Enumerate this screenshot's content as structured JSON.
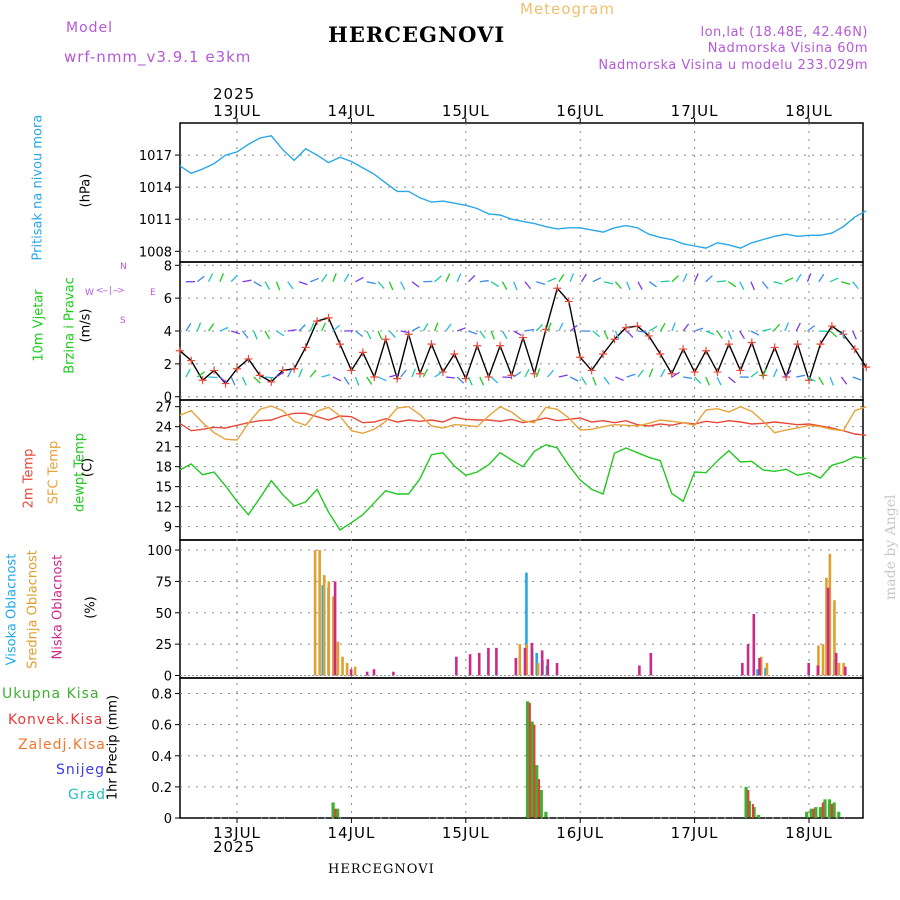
{
  "header": {
    "model_label": "Model",
    "model_name": "wrf-nmm_v3.9.1  e3km",
    "station": "HERCEGNOVI",
    "meteogram": "Meteogram",
    "lonlat": "lon,lat (18.48E, 42.46N)",
    "altitude": "Nadmorska Visina 60m",
    "model_altitude": "Nadmorska Visina u modelu 233.029m"
  },
  "footer": {
    "station": "HERCEGNOVI"
  },
  "watermark": "made by Angel",
  "colors": {
    "pressure": "#2aa7e6",
    "wind_obs": "#1ccc1c",
    "temp2m": "#e84a3a",
    "sfc_temp": "#e8a23a",
    "dewpt": "#22c822",
    "high_cloud": "#22a8e8",
    "mid_cloud": "#e0a030",
    "low_cloud": "#cc2a8a",
    "precip_total": "#40b030",
    "precip_conv": "#e83a3a",
    "precip_frz": "#f07830",
    "precip_snow": "#3a3ae8",
    "precip_grad": "#20c0c0",
    "grid": "#888888"
  },
  "axis_x": {
    "year": "2025",
    "days": [
      "13JUL",
      "14JUL",
      "15JUL",
      "16JUL",
      "17JUL",
      "18JUL"
    ]
  },
  "panels": {
    "pressure": {
      "label": "Pritisak na nivou mora",
      "unit": "(hPa)",
      "ticks": [
        "1017",
        "1014",
        "1011",
        "1008"
      ]
    },
    "wind": {
      "label1": "10m Vjetar",
      "label2": "Brzina i Pravac",
      "unit": "(m/s)",
      "ticks": [
        "8",
        "6",
        "4",
        "2",
        "0"
      ],
      "compass": {
        "n": "N",
        "s": "S",
        "e": "E",
        "w": "W"
      }
    },
    "temp": {
      "label1": "2m Temp",
      "label2": "SFC Temp",
      "label3": "dewpt Temp",
      "unit": "(C)",
      "ticks": [
        "27",
        "24",
        "21",
        "18",
        "15",
        "12",
        "9"
      ]
    },
    "cloud": {
      "label1": "Visoka Oblacnost",
      "label2": "Srednja Oblacnost",
      "label3": "Niska Oblacnost",
      "unit": "(%)",
      "ticks": [
        "100",
        "75",
        "50",
        "25",
        "0"
      ]
    },
    "precip": {
      "legend": [
        "Ukupna Kisa",
        "Konvek.Kisa",
        "Zaledj.Kisa",
        "Snijeg",
        "Grad"
      ],
      "unit": "1hr Precip (mm)",
      "ticks": [
        "0.8",
        "0.6",
        "0.4",
        "0.2",
        "0"
      ]
    }
  },
  "chart_data": [
    {
      "type": "line",
      "title": "Pritisak na nivou mora",
      "ylabel": "(hPa)",
      "ylim": [
        1007,
        1020
      ],
      "x_unit": "days since 13JUL 00Z",
      "series": [
        {
          "name": "Pritisak na nivou mora",
          "x": [
            -0.5,
            -0.4,
            -0.3,
            -0.2,
            -0.1,
            0,
            0.1,
            0.2,
            0.3,
            0.4,
            0.5,
            0.6,
            0.7,
            0.8,
            0.9,
            1,
            1.1,
            1.2,
            1.3,
            1.4,
            1.5,
            1.6,
            1.7,
            1.8,
            1.9,
            2,
            2.1,
            2.2,
            2.3,
            2.4,
            2.5,
            2.6,
            2.7,
            2.8,
            2.9,
            3,
            3.1,
            3.2,
            3.3,
            3.4,
            3.5,
            3.6,
            3.7,
            3.8,
            3.9,
            4,
            4.1,
            4.2,
            4.3,
            4.4,
            4.5,
            4.6,
            4.7,
            4.8,
            4.9,
            5,
            5.1,
            5.2,
            5.3,
            5.4,
            5.5
          ],
          "y": [
            1016.0,
            1015.3,
            1015.7,
            1016.2,
            1017.0,
            1017.3,
            1018.0,
            1018.6,
            1018.8,
            1017.5,
            1016.5,
            1017.6,
            1017.0,
            1016.3,
            1016.8,
            1016.4,
            1015.8,
            1015.2,
            1014.4,
            1013.6,
            1013.6,
            1013.0,
            1012.6,
            1012.7,
            1012.5,
            1012.3,
            1012.0,
            1011.5,
            1011.4,
            1011.0,
            1010.8,
            1010.6,
            1010.3,
            1010.1,
            1010.2,
            1010.2,
            1010.0,
            1009.8,
            1010.2,
            1010.4,
            1010.2,
            1009.6,
            1009.3,
            1009.1,
            1008.7,
            1008.5,
            1008.3,
            1008.8,
            1008.6,
            1008.3,
            1008.8,
            1009.1,
            1009.4,
            1009.6,
            1009.4,
            1009.5,
            1009.5,
            1009.7,
            1010.3,
            1011.2,
            1011.8
          ]
        }
      ]
    },
    {
      "type": "line",
      "title": "10m Vjetar Brzina i Pravac",
      "ylabel": "(m/s)",
      "ylim": [
        0,
        8
      ],
      "x_unit": "days since 13JUL 00Z",
      "series": [
        {
          "name": "10m Vjetar",
          "x": [
            -0.5,
            -0.4,
            -0.3,
            -0.2,
            -0.1,
            0,
            0.1,
            0.2,
            0.3,
            0.4,
            0.5,
            0.6,
            0.7,
            0.8,
            0.9,
            1,
            1.1,
            1.2,
            1.3,
            1.4,
            1.5,
            1.6,
            1.7,
            1.8,
            1.9,
            2,
            2.1,
            2.2,
            2.3,
            2.4,
            2.5,
            2.6,
            2.7,
            2.8,
            2.9,
            3,
            3.1,
            3.2,
            3.3,
            3.4,
            3.5,
            3.6,
            3.7,
            3.8,
            3.9,
            4,
            4.1,
            4.2,
            4.3,
            4.4,
            4.5,
            4.6,
            4.7,
            4.8,
            4.9,
            5,
            5.1,
            5.2,
            5.3,
            5.4,
            5.5
          ],
          "y": [
            2.8,
            2.2,
            1.0,
            1.6,
            0.8,
            1.7,
            2.3,
            1.3,
            0.9,
            1.6,
            1.7,
            3.0,
            4.6,
            4.8,
            3.2,
            1.6,
            2.7,
            1.2,
            3.5,
            1.1,
            3.8,
            1.4,
            3.2,
            1.5,
            2.6,
            1.1,
            3.1,
            1.2,
            3.1,
            1.3,
            3.6,
            1.4,
            4.1,
            6.6,
            5.8,
            2.4,
            1.6,
            2.6,
            3.5,
            4.2,
            4.3,
            3.7,
            2.6,
            1.4,
            2.9,
            1.5,
            2.8,
            1.5,
            3.2,
            1.6,
            3.3,
            1.3,
            3.0,
            1.2,
            3.2,
            1.0,
            3.2,
            4.3,
            3.8,
            2.9,
            1.8
          ]
        }
      ]
    },
    {
      "type": "line",
      "title": "Temperatura",
      "ylabel": "(C)",
      "ylim": [
        7,
        28
      ],
      "x_unit": "days since 13JUL 00Z",
      "series": [
        {
          "name": "2m Temp",
          "x": [
            -0.5,
            -0.4,
            -0.3,
            -0.2,
            -0.1,
            0,
            0.1,
            0.2,
            0.3,
            0.4,
            0.5,
            0.6,
            0.7,
            0.8,
            0.9,
            1,
            1.1,
            1.2,
            1.3,
            1.4,
            1.5,
            1.6,
            1.7,
            1.8,
            1.9,
            2,
            2.1,
            2.2,
            2.3,
            2.4,
            2.5,
            2.6,
            2.7,
            2.8,
            2.9,
            3,
            3.1,
            3.2,
            3.3,
            3.4,
            3.5,
            3.6,
            3.7,
            3.8,
            3.9,
            4,
            4.1,
            4.2,
            4.3,
            4.4,
            4.5,
            4.6,
            4.7,
            4.8,
            4.9,
            5,
            5.1,
            5.2,
            5.3,
            5.4,
            5.5
          ],
          "y": [
            24.5,
            23.4,
            23.6,
            23.9,
            23.8,
            24.2,
            24.6,
            24.9,
            25.0,
            25.6,
            26.0,
            26.0,
            25.5,
            25.0,
            25.6,
            25.5,
            24.6,
            24.7,
            25.2,
            24.7,
            25.0,
            24.8,
            25.0,
            24.7,
            25.4,
            25.1,
            25.0,
            25.0,
            24.8,
            25.1,
            24.6,
            24.9,
            25.3,
            24.9,
            25.1,
            25.3,
            24.7,
            24.9,
            24.6,
            24.9,
            24.3,
            24.1,
            24.4,
            24.2,
            24.6,
            24.4,
            24.8,
            24.6,
            24.9,
            24.7,
            24.4,
            24.5,
            24.7,
            24.5,
            24.3,
            24.4,
            24.1,
            23.8,
            23.4,
            22.9,
            22.7
          ]
        },
        {
          "name": "SFC Temp",
          "x": [
            -0.5,
            -0.4,
            -0.3,
            -0.2,
            -0.1,
            0,
            0.1,
            0.2,
            0.3,
            0.4,
            0.5,
            0.6,
            0.7,
            0.8,
            0.9,
            1,
            1.1,
            1.2,
            1.3,
            1.4,
            1.5,
            1.6,
            1.7,
            1.8,
            1.9,
            2,
            2.1,
            2.2,
            2.3,
            2.4,
            2.5,
            2.6,
            2.7,
            2.8,
            2.9,
            3,
            3.1,
            3.2,
            3.3,
            3.4,
            3.5,
            3.6,
            3.7,
            3.8,
            3.9,
            4,
            4.1,
            4.2,
            4.3,
            4.4,
            4.5,
            4.6,
            4.7,
            4.8,
            4.9,
            5,
            5.1,
            5.2,
            5.3,
            5.4,
            5.5
          ],
          "y": [
            25.7,
            26.4,
            24.6,
            23.1,
            22.1,
            22.0,
            24.5,
            26.6,
            27.1,
            26.4,
            24.8,
            24.2,
            26.3,
            26.9,
            25.6,
            23.4,
            23.0,
            23.6,
            24.8,
            26.8,
            27.0,
            25.8,
            24.1,
            23.8,
            24.3,
            24.2,
            24.0,
            25.6,
            27.0,
            26.2,
            24.9,
            24.6,
            26.9,
            26.6,
            25.3,
            23.5,
            23.6,
            24.0,
            24.3,
            24.2,
            24.1,
            24.5,
            25.0,
            24.8,
            24.6,
            24.2,
            26.5,
            26.7,
            26.2,
            27.0,
            26.3,
            24.8,
            23.1,
            23.5,
            23.8,
            24.2,
            24.0,
            23.6,
            23.4,
            26.4,
            27.0
          ]
        },
        {
          "name": "dewpt Temp",
          "x": [
            -0.5,
            -0.4,
            -0.3,
            -0.2,
            -0.1,
            0,
            0.1,
            0.2,
            0.3,
            0.4,
            0.5,
            0.6,
            0.7,
            0.8,
            0.9,
            1,
            1.1,
            1.2,
            1.3,
            1.4,
            1.5,
            1.6,
            1.7,
            1.8,
            1.9,
            2,
            2.1,
            2.2,
            2.3,
            2.4,
            2.5,
            2.6,
            2.7,
            2.8,
            2.9,
            3,
            3.1,
            3.2,
            3.3,
            3.4,
            3.5,
            3.6,
            3.7,
            3.8,
            3.9,
            4,
            4.1,
            4.2,
            4.3,
            4.4,
            4.5,
            4.6,
            4.7,
            4.8,
            4.9,
            5,
            5.1,
            5.2,
            5.3,
            5.4,
            5.5
          ],
          "y": [
            17.5,
            18.4,
            16.8,
            17.2,
            15.1,
            12.8,
            10.8,
            13.3,
            15.9,
            13.8,
            12.1,
            12.7,
            14.6,
            11.2,
            8.5,
            9.6,
            10.8,
            12.6,
            14.4,
            13.9,
            13.9,
            16.2,
            19.8,
            20.1,
            18.1,
            16.7,
            17.2,
            18.3,
            20.1,
            19.0,
            18.0,
            20.3,
            21.3,
            20.8,
            18.2,
            16.0,
            14.6,
            13.9,
            20.0,
            20.8,
            20.1,
            19.4,
            18.9,
            14.0,
            12.8,
            17.2,
            17.1,
            18.9,
            20.4,
            18.7,
            18.8,
            17.5,
            17.3,
            17.6,
            16.7,
            17.1,
            16.3,
            18.2,
            18.7,
            19.5,
            19.2
          ]
        }
      ]
    },
    {
      "type": "bar",
      "title": "Oblacnost",
      "ylabel": "(%)",
      "ylim": [
        0,
        100
      ],
      "x_unit": "days since 13JUL 00Z",
      "series": [
        {
          "name": "Visoka Oblacnost",
          "x": [
            0.75,
            0.8,
            2.53,
            2.58,
            2.62,
            2.67,
            2.71,
            4.55,
            4.62,
            5.22
          ],
          "y": [
            72,
            70,
            82,
            22,
            18,
            12,
            8,
            5,
            6,
            12
          ]
        },
        {
          "name": "Srednja Oblacnost",
          "x": [
            0.7,
            0.74,
            0.78,
            0.82,
            0.86,
            0.9,
            0.94,
            0.98,
            1.05,
            2.49,
            2.55,
            2.6,
            2.65,
            4.6,
            4.65,
            5.1,
            5.14,
            5.17,
            5.2,
            5.24,
            5.28,
            5.32
          ],
          "y": [
            100,
            100,
            80,
            75,
            63,
            27,
            15,
            10,
            7,
            25,
            25,
            15,
            10,
            15,
            10,
            24,
            25,
            78,
            97,
            60,
            10,
            10
          ]
        },
        {
          "name": "Niska Oblacnost",
          "x": [
            0.84,
            0.98,
            1.12,
            1.18,
            1.35,
            1.9,
            2.02,
            2.1,
            2.18,
            2.25,
            2.42,
            2.5,
            2.56,
            2.65,
            2.7,
            2.78,
            3.5,
            3.6,
            4.4,
            4.45,
            4.5,
            4.55,
            4.98,
            5.06,
            5.15,
            5.22,
            5.3
          ],
          "y": [
            75,
            5,
            3,
            5,
            3,
            15,
            17,
            18,
            22,
            22,
            14,
            22,
            26,
            20,
            13,
            10,
            8,
            18,
            10,
            25,
            49,
            14,
            10,
            8,
            70,
            18,
            7
          ]
        }
      ]
    },
    {
      "type": "bar",
      "title": "1hr Precip",
      "ylabel": "1hr Precip (mm)",
      "ylim": [
        0,
        0.9
      ],
      "x_unit": "days since 13JUL 00Z",
      "series": [
        {
          "name": "Ukupna Kisa",
          "x": [
            0.84,
            0.88,
            2.54,
            2.58,
            2.62,
            2.66,
            2.7,
            4.45,
            4.48,
            4.52,
            4.56,
            4.98,
            5.02,
            5.06,
            5.1,
            5.14,
            5.18,
            5.22,
            5.26
          ],
          "y": [
            0.1,
            0.06,
            0.75,
            0.62,
            0.34,
            0.18,
            0.04,
            0.2,
            0.11,
            0.07,
            0.02,
            0.04,
            0.06,
            0.07,
            0.07,
            0.12,
            0.12,
            0.1,
            0.04
          ]
        },
        {
          "name": "Konvek.Kisa",
          "x": [
            0.86,
            2.56,
            2.6,
            2.64,
            4.47,
            4.51,
            5.04,
            5.12,
            5.2
          ],
          "y": [
            0.06,
            0.74,
            0.6,
            0.25,
            0.18,
            0.09,
            0.06,
            0.1,
            0.09
          ]
        }
      ]
    }
  ]
}
